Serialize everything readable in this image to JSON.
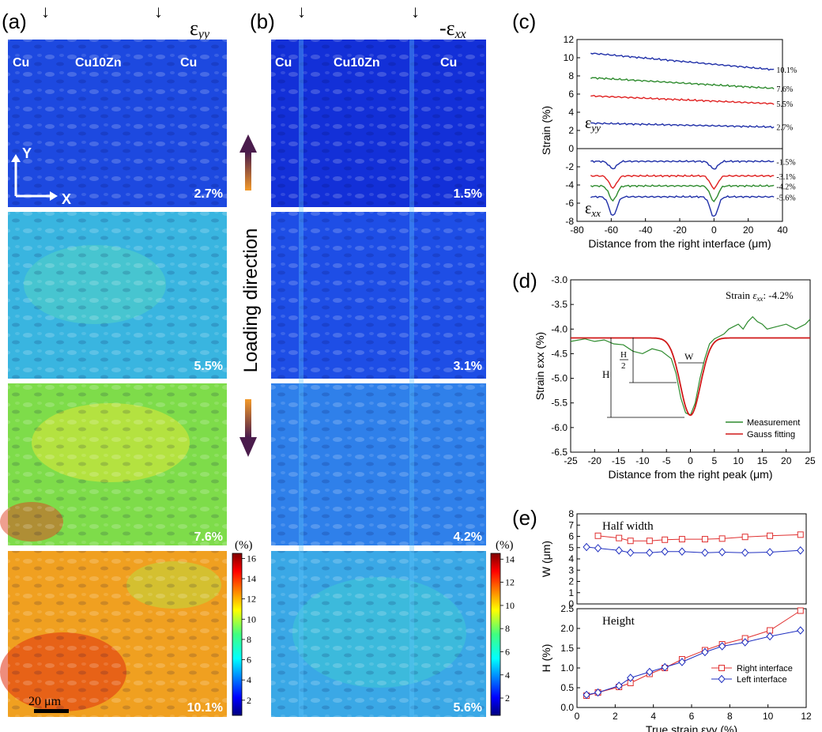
{
  "panels": {
    "a": {
      "label": "(a)",
      "strain_symbol": "ε",
      "strain_sub": "yy",
      "region_left": "Cu",
      "region_mid": "Cu10Zn",
      "region_right": "Cu",
      "maps": [
        "2.7%",
        "5.5%",
        "7.6%",
        "10.1%"
      ],
      "axis_y": "Y",
      "axis_x": "X",
      "scale_bar": "20 μm",
      "colorbar": {
        "unit": "(%)",
        "ticks": [
          "2",
          "4",
          "6",
          "8",
          "10",
          "12",
          "14",
          "16"
        ]
      }
    },
    "b": {
      "label": "(b)",
      "strain_symbol": "-ε",
      "strain_sub": "xx",
      "region_left": "Cu",
      "region_mid": "Cu10Zn",
      "region_right": "Cu",
      "maps": [
        "1.5%",
        "3.1%",
        "4.2%",
        "5.6%"
      ],
      "colorbar": {
        "unit": "(%)",
        "ticks": [
          "2",
          "4",
          "6",
          "8",
          "10",
          "12",
          "14"
        ]
      }
    },
    "loading_direction": "Loading direction",
    "c": {
      "label": "(c)",
      "eps_yy": "ε",
      "eps_yy_sub": "yy",
      "eps_xx": "ε",
      "eps_xx_sub": "xx"
    },
    "d": {
      "label": "(d)",
      "note_prefix": "Strain ",
      "note_sym": "ε",
      "note_sub": "xx",
      "note_value": ": -4.2%",
      "H": "H",
      "half_num": "H",
      "half_den": "2",
      "W": "W"
    },
    "e": {
      "label": "(e)",
      "top_title": "Half width",
      "bottom_title": "Height"
    }
  },
  "chart_data": [
    {
      "id": "c",
      "type": "line",
      "xlabel": "Distance from the right interface (μm)",
      "ylabel": "Strain (%)",
      "xlim": [
        -80,
        40
      ],
      "ylim": [
        -8,
        12
      ],
      "xticks": [
        "-80",
        "-60",
        "-40",
        "-20",
        "0",
        "20",
        "40"
      ],
      "yticks": [
        "-8",
        "-6",
        "-4",
        "-2",
        "0",
        "2",
        "4",
        "6",
        "8",
        "10",
        "12"
      ],
      "series": [
        {
          "name": "10.1%",
          "color": "#1f2fa8",
          "base": 10.5,
          "slope": -0.017,
          "dip": 0
        },
        {
          "name": "7.6%",
          "color": "#2e8b2e",
          "base": 7.8,
          "slope": -0.011,
          "dip": 0
        },
        {
          "name": "5.5%",
          "color": "#e02020",
          "base": 5.8,
          "slope": -0.008,
          "dip": 0
        },
        {
          "name": "2.7%",
          "color": "#1f2fa8",
          "base": 2.8,
          "slope": -0.004,
          "dip": 0
        },
        {
          "name": "-1.5%",
          "color": "#1f2fa8",
          "base": -1.4,
          "slope": 0,
          "dip": 0.8
        },
        {
          "name": "-3.1%",
          "color": "#e02020",
          "base": -3.0,
          "slope": 0,
          "dip": 1.3
        },
        {
          "name": "-4.2%",
          "color": "#2e8b2e",
          "base": -4.1,
          "slope": 0,
          "dip": 1.6
        },
        {
          "name": "-5.6%",
          "color": "#1f2fa8",
          "base": -5.3,
          "slope": 0,
          "dip": 2.1
        }
      ]
    },
    {
      "id": "d",
      "type": "line",
      "xlabel": "Distance from the right peak (μm)",
      "ylabel": "Strain εxx (%)",
      "xlim": [
        -25,
        25
      ],
      "ylim": [
        -6.5,
        -3.0
      ],
      "xticks": [
        "-25",
        "-20",
        "-15",
        "-10",
        "-5",
        "0",
        "5",
        "10",
        "15",
        "20",
        "25"
      ],
      "yticks": [
        "-6.5",
        "-6.0",
        "-5.5",
        "-5.0",
        "-4.5",
        "-4.0",
        "-3.5",
        "-3.0"
      ],
      "series": [
        {
          "name": "Measurement",
          "color": "#2e8b2e",
          "x": [
            -25,
            -22,
            -20,
            -18,
            -16,
            -14,
            -12,
            -10,
            -8,
            -6,
            -4,
            -3,
            -2,
            -1,
            0,
            1,
            2,
            3,
            4,
            5,
            6,
            7,
            8,
            9,
            10,
            11,
            12,
            13,
            14,
            15,
            16,
            18,
            20,
            22,
            24,
            25
          ],
          "y": [
            -4.25,
            -4.2,
            -4.25,
            -4.22,
            -4.3,
            -4.32,
            -4.45,
            -4.5,
            -4.4,
            -4.45,
            -4.6,
            -4.9,
            -5.4,
            -5.7,
            -5.75,
            -5.5,
            -5.0,
            -4.6,
            -4.3,
            -4.2,
            -4.15,
            -4.1,
            -4.0,
            -3.95,
            -3.9,
            -4.0,
            -3.85,
            -3.75,
            -3.85,
            -3.9,
            -4.0,
            -3.95,
            -3.9,
            -4.0,
            -3.9,
            -3.8
          ]
        },
        {
          "name": "Gauss fitting",
          "color": "#d01818",
          "base": -4.18,
          "amp": -1.57,
          "sigma": 2.1
        }
      ]
    },
    {
      "id": "e-top",
      "type": "line",
      "ylabel": "W (μm)",
      "xlim": [
        0,
        12
      ],
      "ylim": [
        0,
        8
      ],
      "yticks": [
        "0",
        "1",
        "2",
        "3",
        "4",
        "5",
        "6",
        "7",
        "8"
      ],
      "series": [
        {
          "name": "Right interface",
          "color": "#e03030",
          "marker": "square",
          "x": [
            1.1,
            2.2,
            2.8,
            3.8,
            4.6,
            5.5,
            6.7,
            7.6,
            8.8,
            10.1,
            11.7
          ],
          "y": [
            6.05,
            5.85,
            5.6,
            5.6,
            5.7,
            5.75,
            5.75,
            5.8,
            5.95,
            6.05,
            6.15
          ]
        },
        {
          "name": "Left interface",
          "color": "#2030c0",
          "marker": "diamond",
          "x": [
            0.5,
            1.1,
            2.2,
            2.8,
            3.8,
            4.6,
            5.5,
            6.7,
            7.6,
            8.8,
            10.1,
            11.7
          ],
          "y": [
            5.05,
            4.95,
            4.75,
            4.55,
            4.55,
            4.65,
            4.65,
            4.55,
            4.6,
            4.55,
            4.6,
            4.75
          ]
        }
      ]
    },
    {
      "id": "e-bottom",
      "type": "line",
      "xlabel": "True strain εyy (%)",
      "ylabel": "H (%)",
      "xlim": [
        0,
        12
      ],
      "ylim": [
        0,
        2.5
      ],
      "xticks": [
        "0",
        "2",
        "4",
        "6",
        "8",
        "10",
        "12"
      ],
      "yticks": [
        "0.0",
        "0.5",
        "1.0",
        "1.5",
        "2.0",
        "2.5"
      ],
      "series": [
        {
          "name": "Right interface",
          "color": "#e03030",
          "marker": "square",
          "x": [
            0.5,
            1.1,
            2.2,
            2.8,
            3.8,
            4.6,
            5.5,
            6.7,
            7.6,
            8.8,
            10.1,
            11.7
          ],
          "y": [
            0.3,
            0.38,
            0.52,
            0.62,
            0.85,
            1.0,
            1.22,
            1.45,
            1.6,
            1.75,
            1.95,
            2.45
          ]
        },
        {
          "name": "Left interface",
          "color": "#2030c0",
          "marker": "diamond",
          "x": [
            0.5,
            1.1,
            2.2,
            2.8,
            3.8,
            4.6,
            5.5,
            6.7,
            7.6,
            8.8,
            10.1,
            11.7
          ],
          "y": [
            0.32,
            0.38,
            0.55,
            0.75,
            0.9,
            1.02,
            1.15,
            1.4,
            1.55,
            1.65,
            1.8,
            1.95
          ]
        }
      ]
    }
  ]
}
